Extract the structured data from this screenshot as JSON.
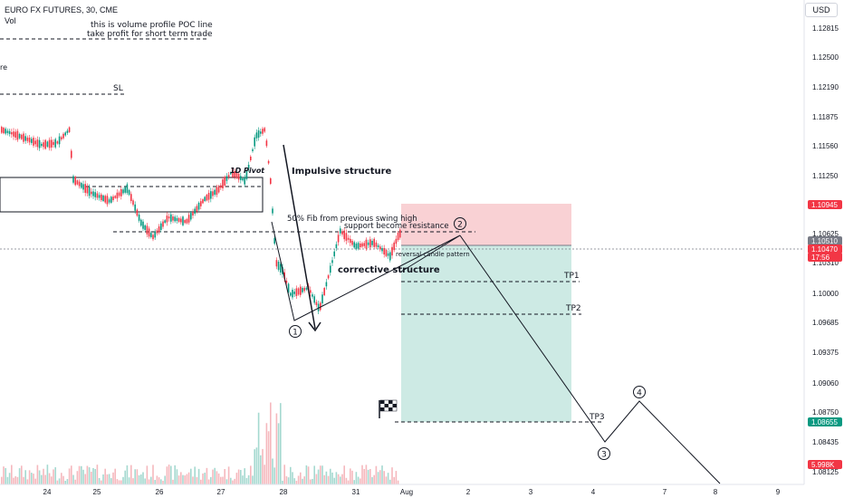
{
  "header": {
    "symbol": "EURO FX FUTURES, 30, CME",
    "volume_label": "Vol",
    "currency_button": "USD"
  },
  "chart_data": {
    "type": "candlestick",
    "y_ticks": [
      "1.12815",
      "1.12500",
      "1.12190",
      "1.11875",
      "1.11560",
      "1.11250",
      "1.10625",
      "1.10310",
      "1.10000",
      "1.09685",
      "1.09375",
      "1.09060",
      "1.08750",
      "1.08435",
      "1.08125"
    ],
    "x_ticks": [
      "24",
      "25",
      "26",
      "27",
      "28",
      "31",
      "Aug",
      "2",
      "3",
      "4",
      "7",
      "8",
      "9"
    ],
    "ylim": [
      1.0806,
      1.1306
    ],
    "price_labels": [
      {
        "text": "1.10945",
        "color": "#f23645"
      },
      {
        "text": "1.10510",
        "color": "#787b86"
      },
      {
        "text": "1.10470",
        "color": "#f23645"
      },
      {
        "text": "17:56",
        "color": "#f23645"
      },
      {
        "text": "1.08655",
        "color": "#089981"
      },
      {
        "text": "5.998K",
        "color": "#f23645"
      }
    ],
    "colors": {
      "up": "#089981",
      "down": "#f23645",
      "stop": "#f7c6c9",
      "target": "#b2dfd6"
    },
    "trade": {
      "stop": 1.10945,
      "entry": 1.1051,
      "target": 1.08655,
      "tp1": 1.1019,
      "tp2": 1.0987,
      "tp3": 1.08655
    },
    "annotations": {
      "poc_line_1": "this is volume profile POC line",
      "poc_line_2": "take profit for short term trade",
      "sl": "SL",
      "pivot": "1D Pivot",
      "impulsive": "Impulsive structure",
      "fib": "50% Fib from previous swing high",
      "support": "support become resistance",
      "reversal": "reversal candle pattern",
      "corrective": "corrective structure",
      "tp1": "TP1",
      "tp2": "TP2",
      "tp3": "TP3",
      "wave_1": "1",
      "wave_2": "2",
      "wave_3": "3",
      "wave_4": "4",
      "left_cut": "re"
    }
  }
}
